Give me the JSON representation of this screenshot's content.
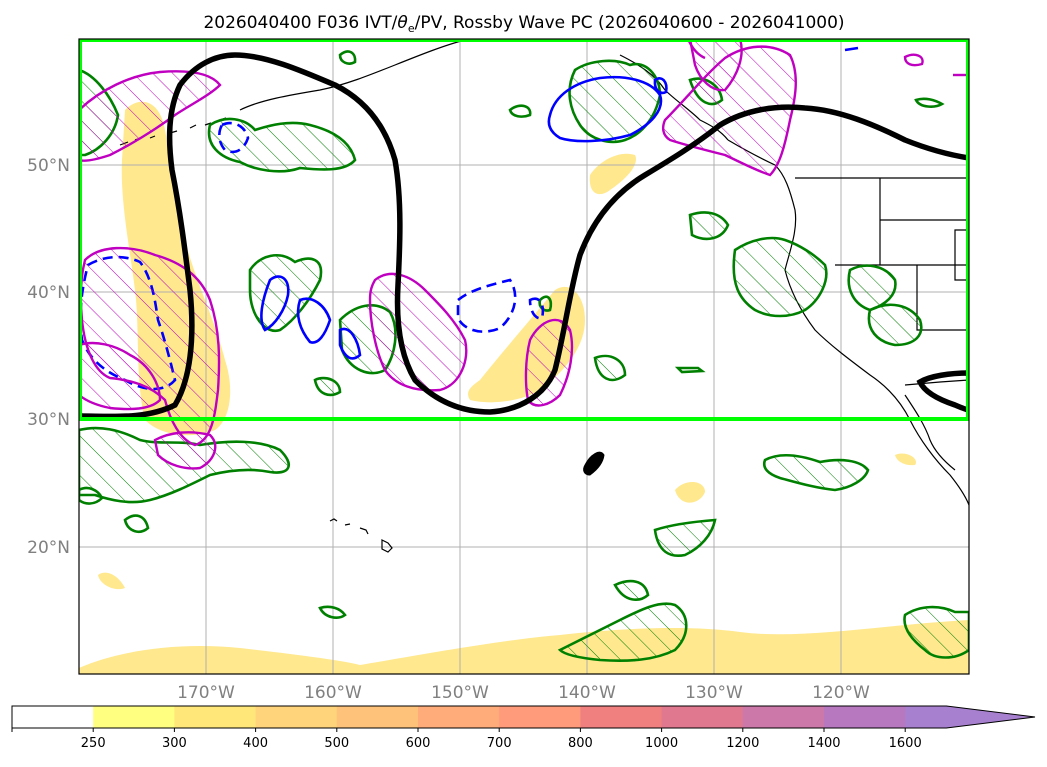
{
  "title": "2026040400 F036 IVT/θe/PV, Rossby Wave PC (2026040600 - 2026041000)",
  "title_parts": {
    "prefix": "2026040400 F036 IVT/",
    "theta": "θ",
    "subscript": "e",
    "suffix": "/PV, Rossby Wave PC (2026040600 - 2026041000)"
  },
  "map": {
    "lat_labels": [
      "50°N",
      "40°N",
      "30°N",
      "20°N"
    ],
    "lat_values": [
      50,
      40,
      30,
      20
    ],
    "lon_labels": [
      "170°W",
      "160°W",
      "150°W",
      "140°W",
      "130°W",
      "120°W"
    ],
    "lon_values": [
      -170,
      -160,
      -150,
      -140,
      -130,
      -120
    ],
    "extent": {
      "lon_min": -180,
      "lon_max": -110,
      "lat_min": 10,
      "lat_max": 60
    },
    "highlight_box": {
      "lon_min": -180,
      "lon_max": -110,
      "lat_min": 30,
      "lat_max": 60,
      "color": "#00ff00"
    },
    "colors": {
      "wave_contour": "#000000",
      "pv_positive": "#008000",
      "pv_negative": "#0000ff",
      "theta_e": "#c000c0",
      "ivt_fill": "#ffe47a",
      "coast": "#000000"
    }
  },
  "colorbar": {
    "labels": [
      "250",
      "300",
      "400",
      "500",
      "600",
      "700",
      "800",
      "1000",
      "1200",
      "1400",
      "1600"
    ],
    "colors": [
      "#ffffff",
      "#ffff80",
      "#ffe77a",
      "#ffd47a",
      "#ffc27a",
      "#ffab7a",
      "#ff9a7a",
      "#f08080",
      "#e07890",
      "#cc78a8",
      "#b878c0",
      "#a880d0"
    ],
    "extend": "max"
  }
}
